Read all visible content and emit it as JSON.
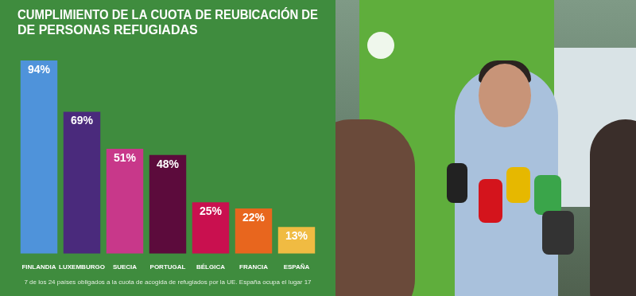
{
  "chart_data": {
    "type": "bar",
    "title": [
      "CUMPLIMIENTO DE LA CUOTA DE REUBICACIÓN DE",
      "DE PERSONAS REFUGIADAS"
    ],
    "annotation": "7 de los 24 países obligados a la cuota de acogida de refugiados por la UE. España ocupa el lugar 17",
    "categories": [
      "FINLANDIA",
      "LUXEMBURGO",
      "SUECIA",
      "PORTUGAL",
      "BÉLGICA",
      "FRANCIA",
      "ESPAÑA"
    ],
    "values": [
      94,
      69,
      51,
      48,
      25,
      22,
      13
    ],
    "value_labels": [
      "94%",
      "69%",
      "51%",
      "48%",
      "25%",
      "22%",
      "13%"
    ],
    "colors": [
      "#4f93da",
      "#4a2a7c",
      "#c8388a",
      "#5c0b3c",
      "#c9104f",
      "#e8661e",
      "#f0bb42"
    ],
    "ylim": [
      0,
      100
    ],
    "yticks": [
      0,
      100
    ],
    "grid": false,
    "data_labels": true,
    "tick_labels": "x"
  }
}
